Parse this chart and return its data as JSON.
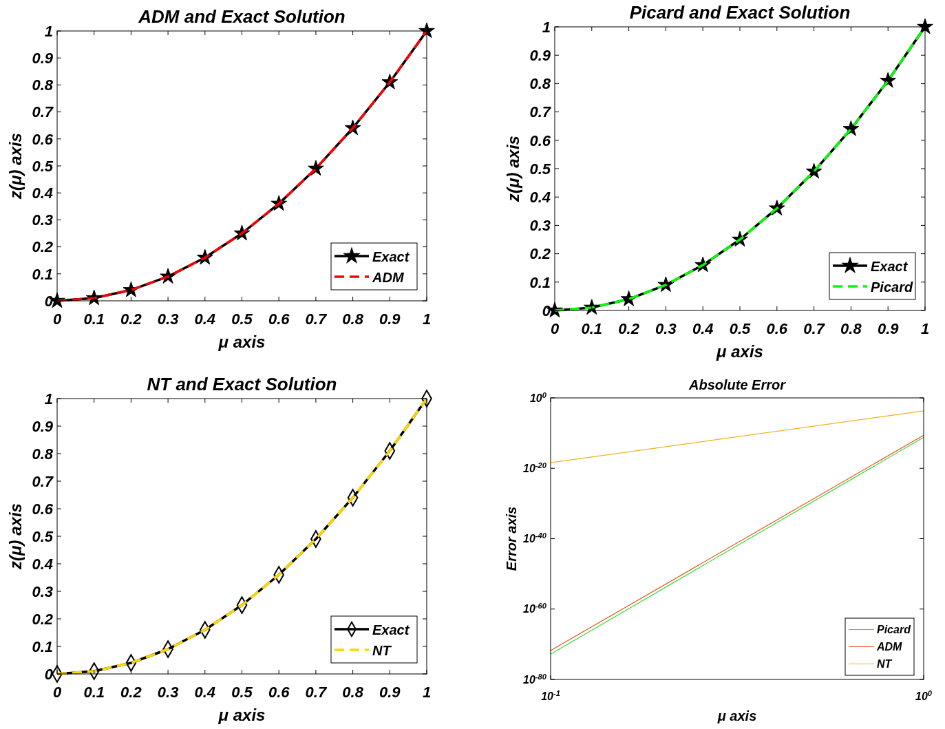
{
  "chart_data": [
    {
      "type": "line",
      "title": "ADM and Exact Solution",
      "xlabel": "μ axis",
      "ylabel": "z(μ) axis",
      "x": [
        0,
        0.1,
        0.2,
        0.3,
        0.4,
        0.5,
        0.6,
        0.7,
        0.8,
        0.9,
        1
      ],
      "xlim": [
        0,
        1
      ],
      "ylim": [
        0,
        1
      ],
      "xticks": [
        0,
        0.1,
        0.2,
        0.3,
        0.4,
        0.5,
        0.6,
        0.7,
        0.8,
        0.9,
        1
      ],
      "yticks": [
        0,
        0.1,
        0.2,
        0.3,
        0.4,
        0.5,
        0.6,
        0.7,
        0.8,
        0.9,
        1
      ],
      "grid": false,
      "legend": "bottom right",
      "series": [
        {
          "name": "Exact",
          "color": "#000000",
          "marker": "star",
          "line_style": "solid",
          "values": [
            0,
            0.01,
            0.04,
            0.09,
            0.16,
            0.25,
            0.36,
            0.49,
            0.64,
            0.81,
            1
          ]
        },
        {
          "name": "ADM",
          "color": "#ff0000",
          "marker": "none",
          "line_style": "dashed",
          "values": [
            0,
            0.01,
            0.04,
            0.09,
            0.16,
            0.25,
            0.36,
            0.49,
            0.64,
            0.81,
            1
          ]
        }
      ]
    },
    {
      "type": "line",
      "title": "Picard and Exact Solution",
      "xlabel": "μ axis",
      "ylabel": "z(μ) axis",
      "x": [
        0,
        0.1,
        0.2,
        0.3,
        0.4,
        0.5,
        0.6,
        0.7,
        0.8,
        0.9,
        1
      ],
      "xlim": [
        0,
        1
      ],
      "ylim": [
        0,
        1
      ],
      "xticks": [
        0,
        0.1,
        0.2,
        0.3,
        0.4,
        0.5,
        0.6,
        0.7,
        0.8,
        0.9,
        1
      ],
      "yticks": [
        0,
        0.1,
        0.2,
        0.3,
        0.4,
        0.5,
        0.6,
        0.7,
        0.8,
        0.9,
        1
      ],
      "grid": false,
      "legend": "bottom right",
      "series": [
        {
          "name": "Exact",
          "color": "#000000",
          "marker": "star",
          "line_style": "solid",
          "values": [
            0,
            0.01,
            0.04,
            0.09,
            0.16,
            0.25,
            0.36,
            0.49,
            0.64,
            0.81,
            1
          ]
        },
        {
          "name": "Picard",
          "color": "#00ff00",
          "marker": "none",
          "line_style": "dashed",
          "values": [
            0,
            0.01,
            0.04,
            0.09,
            0.16,
            0.25,
            0.36,
            0.49,
            0.64,
            0.81,
            1
          ]
        }
      ]
    },
    {
      "type": "line",
      "title": "NT and Exact Solution",
      "xlabel": "μ axis",
      "ylabel": "z(μ) axis",
      "x": [
        0,
        0.1,
        0.2,
        0.3,
        0.4,
        0.5,
        0.6,
        0.7,
        0.8,
        0.9,
        1
      ],
      "xlim": [
        0,
        1
      ],
      "ylim": [
        0,
        1
      ],
      "xticks": [
        0,
        0.1,
        0.2,
        0.3,
        0.4,
        0.5,
        0.6,
        0.7,
        0.8,
        0.9,
        1
      ],
      "yticks": [
        0,
        0.1,
        0.2,
        0.3,
        0.4,
        0.5,
        0.6,
        0.7,
        0.8,
        0.9,
        1
      ],
      "grid": false,
      "legend": "bottom right",
      "series": [
        {
          "name": "Exact",
          "color": "#000000",
          "marker": "diamond",
          "line_style": "solid",
          "values": [
            0,
            0.01,
            0.04,
            0.09,
            0.16,
            0.25,
            0.36,
            0.49,
            0.64,
            0.81,
            1
          ]
        },
        {
          "name": "NT",
          "color": "#ffd700",
          "marker": "none",
          "line_style": "dashed",
          "values": [
            0,
            0.01,
            0.04,
            0.09,
            0.16,
            0.25,
            0.36,
            0.49,
            0.64,
            0.81,
            1
          ]
        }
      ]
    },
    {
      "type": "line",
      "title": "Absolute Error",
      "xlabel": "μ axis",
      "ylabel": "Error axis",
      "log": "xy",
      "x": [
        0.1,
        1
      ],
      "xlim": [
        0.1,
        1
      ],
      "ylim": [
        1e-80,
        1
      ],
      "xticks": [
        {
          "value": 0.1,
          "label": "10$^{-1}$"
        },
        {
          "value": 1,
          "label": "10$^{0}$"
        }
      ],
      "yticks": [
        {
          "value": 1e-80,
          "label": "10$^{-80}$"
        },
        {
          "value": 1e-60,
          "label": "10$^{-60}$"
        },
        {
          "value": 1e-40,
          "label": "10$^{-40}$"
        },
        {
          "value": 1e-20,
          "label": "10$^{-20}$"
        },
        {
          "value": 1,
          "label": "10$^{0}$"
        }
      ],
      "grid": false,
      "legend": "bottom right",
      "series": [
        {
          "name": "Picard",
          "color": "#33dd33",
          "marker": "none",
          "line_style": "solid",
          "values": [
            1.6e-73,
            6.3e-12
          ]
        },
        {
          "name": "ADM",
          "color": "#e8501e",
          "marker": "none",
          "line_style": "solid",
          "values": [
            1.6e-72,
            2.5e-11
          ]
        },
        {
          "name": "NT",
          "color": "#f0b020",
          "marker": "none",
          "line_style": "solid",
          "values": [
            4e-19,
            0.0002
          ]
        }
      ]
    }
  ]
}
